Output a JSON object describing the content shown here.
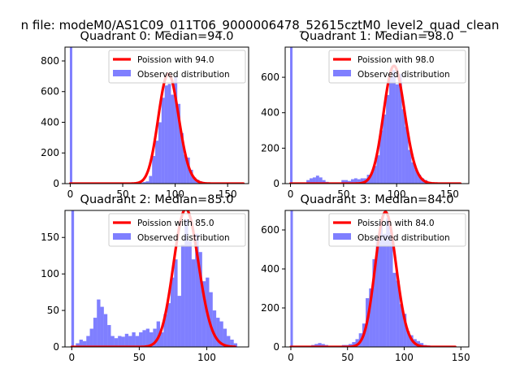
{
  "figure": {
    "suptitle": "n file: modeM0/AS1C09_011T06_9000006478_52615cztM0_level2_quad_clean"
  },
  "chart_data": [
    {
      "type": "bar",
      "title": "Quadrant 0: Median=94.0",
      "xlim": [
        -5,
        170
      ],
      "ylim": [
        0,
        890
      ],
      "xticks": [
        0,
        50,
        100,
        150
      ],
      "yticks": [
        0,
        200,
        400,
        600,
        800
      ],
      "legend": {
        "position": "top-right",
        "fit_label": "Poission with 94.0",
        "hist_label": "Observed distribution"
      },
      "spike": {
        "x": 0,
        "height": 890
      },
      "hist": {
        "bin_width": 3,
        "bins": [
          [
            63,
            5
          ],
          [
            66,
            5
          ],
          [
            69,
            10
          ],
          [
            72,
            15
          ],
          [
            75,
            50
          ],
          [
            78,
            180
          ],
          [
            81,
            280
          ],
          [
            84,
            400
          ],
          [
            87,
            560
          ],
          [
            90,
            640
          ],
          [
            93,
            650
          ],
          [
            96,
            580
          ],
          [
            99,
            700
          ],
          [
            102,
            520
          ],
          [
            105,
            330
          ],
          [
            108,
            190
          ],
          [
            111,
            170
          ],
          [
            114,
            90
          ],
          [
            117,
            40
          ],
          [
            120,
            25
          ],
          [
            123,
            15
          ],
          [
            126,
            10
          ],
          [
            129,
            5
          ],
          [
            132,
            5
          ]
        ]
      },
      "poisson": {
        "mean": 94.0,
        "n_obs": 5800,
        "bin_width": 3,
        "x_min": 0,
        "x_max": 165,
        "start": 0,
        "end": 165
      }
    },
    {
      "type": "bar",
      "title": "Quadrant 1: Median=98.0",
      "xlim": [
        -5,
        168
      ],
      "ylim": [
        0,
        770
      ],
      "xticks": [
        0,
        50,
        100,
        150
      ],
      "yticks": [
        0,
        200,
        400,
        600
      ],
      "legend": {
        "position": "top-right",
        "fit_label": "Poission with 98.0",
        "hist_label": "Observed distribution"
      },
      "spike": {
        "x": 0,
        "height": 770
      },
      "hist": {
        "bin_width": 3,
        "bins": [
          [
            15,
            20
          ],
          [
            18,
            30
          ],
          [
            21,
            35
          ],
          [
            24,
            45
          ],
          [
            27,
            35
          ],
          [
            30,
            20
          ],
          [
            33,
            10
          ],
          [
            48,
            20
          ],
          [
            51,
            20
          ],
          [
            54,
            15
          ],
          [
            57,
            25
          ],
          [
            60,
            30
          ],
          [
            63,
            25
          ],
          [
            66,
            30
          ],
          [
            69,
            30
          ],
          [
            72,
            50
          ],
          [
            75,
            60
          ],
          [
            78,
            100
          ],
          [
            81,
            160
          ],
          [
            84,
            300
          ],
          [
            87,
            390
          ],
          [
            90,
            500
          ],
          [
            93,
            600
          ],
          [
            96,
            640
          ],
          [
            99,
            560
          ],
          [
            102,
            620
          ],
          [
            105,
            420
          ],
          [
            108,
            320
          ],
          [
            111,
            190
          ],
          [
            114,
            120
          ],
          [
            117,
            80
          ],
          [
            120,
            50
          ],
          [
            123,
            30
          ],
          [
            126,
            20
          ],
          [
            129,
            10
          ],
          [
            132,
            5
          ]
        ]
      },
      "poisson": {
        "mean": 98.0,
        "n_obs": 5500,
        "bin_width": 3,
        "x_min": 0,
        "x_max": 160,
        "start": 0,
        "end": 160
      }
    },
    {
      "type": "bar",
      "title": "Quadrant 2: Median=85.0",
      "xlim": [
        -5,
        131
      ],
      "ylim": [
        0,
        187
      ],
      "xticks": [
        0,
        50,
        100
      ],
      "yticks": [
        0,
        50,
        100,
        150
      ],
      "legend": {
        "position": "top-right",
        "fit_label": "Poission with 85.0",
        "hist_label": "Observed distribution"
      },
      "spike": {
        "x": 0,
        "height": 187
      },
      "hist": {
        "bin_width": 2.6,
        "bins": [
          [
            3,
            5
          ],
          [
            5.6,
            10
          ],
          [
            8.2,
            8
          ],
          [
            10.8,
            15
          ],
          [
            13.4,
            25
          ],
          [
            16,
            40
          ],
          [
            18.6,
            65
          ],
          [
            21.2,
            55
          ],
          [
            23.8,
            45
          ],
          [
            26.4,
            30
          ],
          [
            29,
            15
          ],
          [
            31.6,
            12
          ],
          [
            34.2,
            15
          ],
          [
            36.8,
            14
          ],
          [
            39.4,
            18
          ],
          [
            42,
            15
          ],
          [
            44.6,
            20
          ],
          [
            47.2,
            15
          ],
          [
            49.8,
            20
          ],
          [
            52.4,
            23
          ],
          [
            55,
            25
          ],
          [
            57.6,
            20
          ],
          [
            60.2,
            25
          ],
          [
            62.8,
            35
          ],
          [
            65.4,
            20
          ],
          [
            68,
            45
          ],
          [
            70.6,
            60
          ],
          [
            73.2,
            95
          ],
          [
            75.8,
            120
          ],
          [
            78.4,
            70
          ],
          [
            81,
            140
          ],
          [
            83.6,
            175
          ],
          [
            86.2,
            145
          ],
          [
            88.8,
            120
          ],
          [
            91.4,
            155
          ],
          [
            94,
            130
          ],
          [
            96.6,
            90
          ],
          [
            99.2,
            95
          ],
          [
            101.8,
            75
          ],
          [
            104.4,
            50
          ],
          [
            107,
            40
          ],
          [
            109.6,
            35
          ],
          [
            112.2,
            25
          ],
          [
            114.8,
            15
          ],
          [
            117.4,
            10
          ],
          [
            120,
            5
          ]
        ]
      },
      "poisson": {
        "mean": 85.0,
        "n_obs": 1680,
        "bin_width": 2.6,
        "x_min": 0,
        "x_max": 121,
        "start": 0,
        "end": 121
      }
    },
    {
      "type": "bar",
      "title": "Quadrant 3: Median=84.0",
      "xlim": [
        -5,
        157
      ],
      "ylim": [
        0,
        700
      ],
      "xticks": [
        0,
        50,
        100,
        150
      ],
      "yticks": [
        0,
        200,
        400,
        600
      ],
      "legend": {
        "position": "top-right",
        "fit_label": "Poission with 84.0",
        "hist_label": "Observed distribution"
      },
      "spike": {
        "x": 0,
        "height": 700
      },
      "hist": {
        "bin_width": 3,
        "bins": [
          [
            15,
            5
          ],
          [
            18,
            10
          ],
          [
            21,
            15
          ],
          [
            24,
            20
          ],
          [
            27,
            15
          ],
          [
            30,
            10
          ],
          [
            45,
            10
          ],
          [
            48,
            10
          ],
          [
            51,
            15
          ],
          [
            54,
            25
          ],
          [
            57,
            40
          ],
          [
            60,
            70
          ],
          [
            63,
            120
          ],
          [
            66,
            250
          ],
          [
            69,
            300
          ],
          [
            72,
            450
          ],
          [
            75,
            560
          ],
          [
            78,
            640
          ],
          [
            81,
            580
          ],
          [
            84,
            660
          ],
          [
            87,
            590
          ],
          [
            90,
            380
          ],
          [
            93,
            340
          ],
          [
            96,
            220
          ],
          [
            99,
            170
          ],
          [
            102,
            80
          ],
          [
            105,
            60
          ],
          [
            108,
            40
          ],
          [
            111,
            30
          ],
          [
            114,
            20
          ],
          [
            117,
            10
          ],
          [
            120,
            8
          ],
          [
            123,
            5
          ]
        ]
      },
      "poisson": {
        "mean": 84.0,
        "n_obs": 5300,
        "bin_width": 3,
        "x_min": 0,
        "x_max": 145,
        "start": 0,
        "end": 145
      }
    }
  ]
}
